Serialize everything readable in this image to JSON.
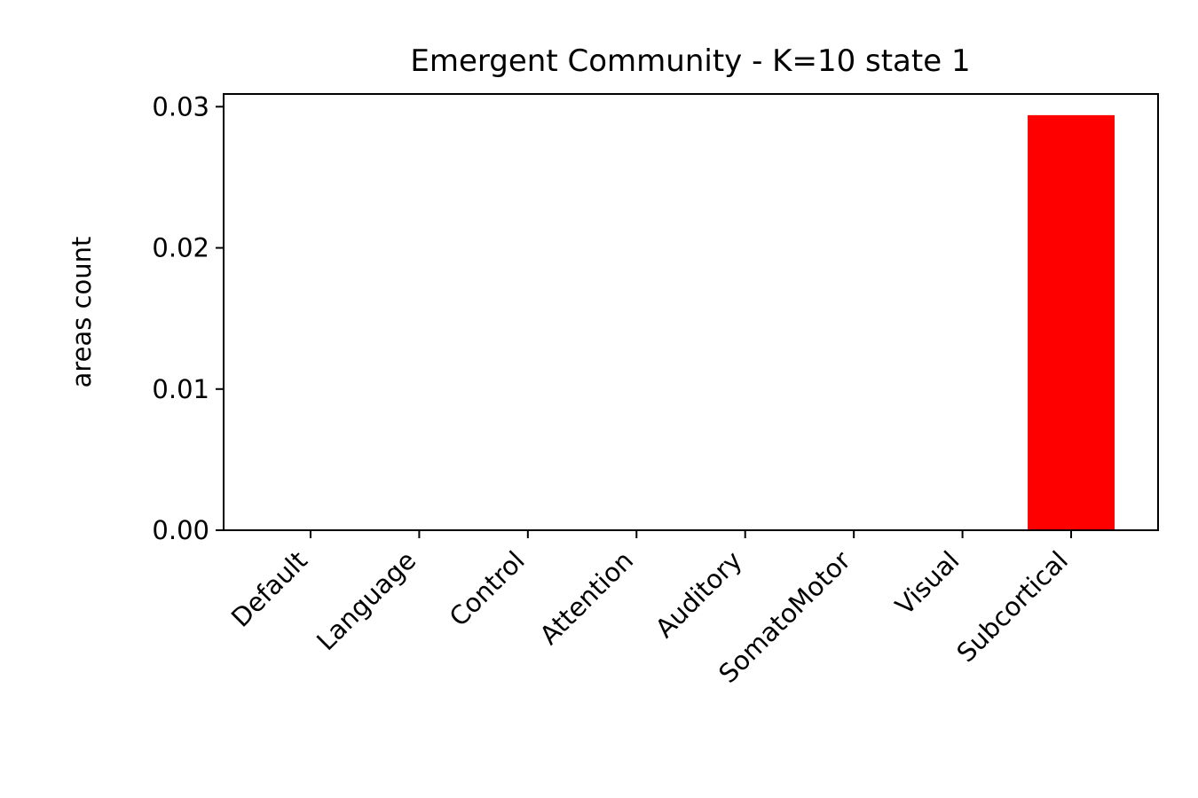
{
  "chart_data": {
    "type": "bar",
    "title": "Emergent Community - K=10 state 1",
    "xlabel": "",
    "ylabel": "areas count",
    "categories": [
      "Default",
      "Language",
      "Control",
      "Attention",
      "Auditory",
      "SomatoMotor",
      "Visual",
      "Subcortical"
    ],
    "values": [
      0,
      0,
      0,
      0,
      0,
      0,
      0,
      0.0294
    ],
    "bar_colors": [
      "#ff0000",
      "#ff0000",
      "#ff0000",
      "#ff0000",
      "#ff0000",
      "#ff0000",
      "#ff0000",
      "#ff0000"
    ],
    "ylim": [
      0,
      0.0309
    ],
    "yticks": [
      0.0,
      0.01,
      0.02,
      0.03
    ],
    "ytick_labels": [
      "0.00",
      "0.01",
      "0.02",
      "0.03"
    ],
    "xlim": [
      -0.8,
      7.8
    ],
    "grid": false,
    "legend": "none"
  }
}
